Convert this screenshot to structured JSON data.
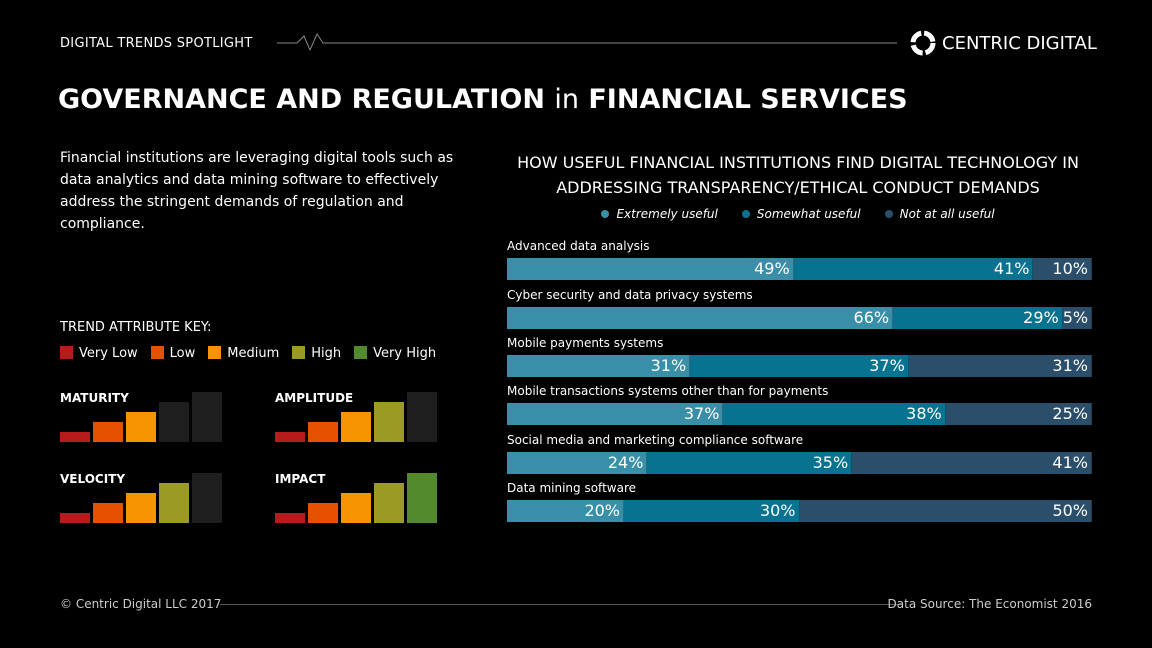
{
  "header": {
    "spotlight": "DIGITAL TRENDS SPOTLIGHT",
    "brand": "CENTRIC DIGITAL"
  },
  "title": {
    "part1": "GOVERNANCE AND REGULATION",
    "part2": "in",
    "part3": "FINANCIAL SERVICES"
  },
  "intro": "Financial institutions are leveraging digital tools such as data analytics and data mining software to effectively address the stringent demands of regulation and compliance.",
  "key": {
    "title": "TREND ATTRIBUTE KEY:",
    "levels": [
      {
        "label": "Very Low",
        "color": "#b71c1c"
      },
      {
        "label": "Low",
        "color": "#e65100"
      },
      {
        "label": "Medium",
        "color": "#f59300"
      },
      {
        "label": "High",
        "color": "#9a9a24"
      },
      {
        "label": "Very High",
        "color": "#548a2e"
      }
    ],
    "inactive_color": "#1e1e1e"
  },
  "attributes": [
    {
      "name": "MATURITY",
      "level": 3
    },
    {
      "name": "AMPLITUDE",
      "level": 4
    },
    {
      "name": "VELOCITY",
      "level": 4
    },
    {
      "name": "IMPACT",
      "level": 5
    }
  ],
  "chart_data": {
    "type": "bar",
    "stacked": true,
    "orientation": "horizontal",
    "title": "HOW USEFUL FINANCIAL INSTITUTIONS FIND DIGITAL TECHNOLOGY IN ADDRESSING TRANSPARENCY/ETHICAL CONDUCT DEMANDS",
    "legend_position": "top",
    "categories": [
      "Advanced data analysis",
      "Cyber security and data privacy systems",
      "Mobile payments systems",
      "Mobile transactions systems other than for payments",
      "Social media and marketing compliance software",
      "Data mining software"
    ],
    "series": [
      {
        "name": "Extremely useful",
        "color": "#3a8fa8",
        "values": [
          49,
          66,
          31,
          37,
          24,
          20
        ]
      },
      {
        "name": "Somewhat useful",
        "color": "#087390",
        "values": [
          41,
          29,
          37,
          38,
          35,
          30
        ]
      },
      {
        "name": "Not at all useful",
        "color": "#2b4f6b",
        "values": [
          10,
          5,
          31,
          25,
          41,
          50
        ]
      }
    ]
  },
  "footer": {
    "copyright": "© Centric Digital LLC 2017",
    "source": "Data Source: The Economist 2016"
  }
}
